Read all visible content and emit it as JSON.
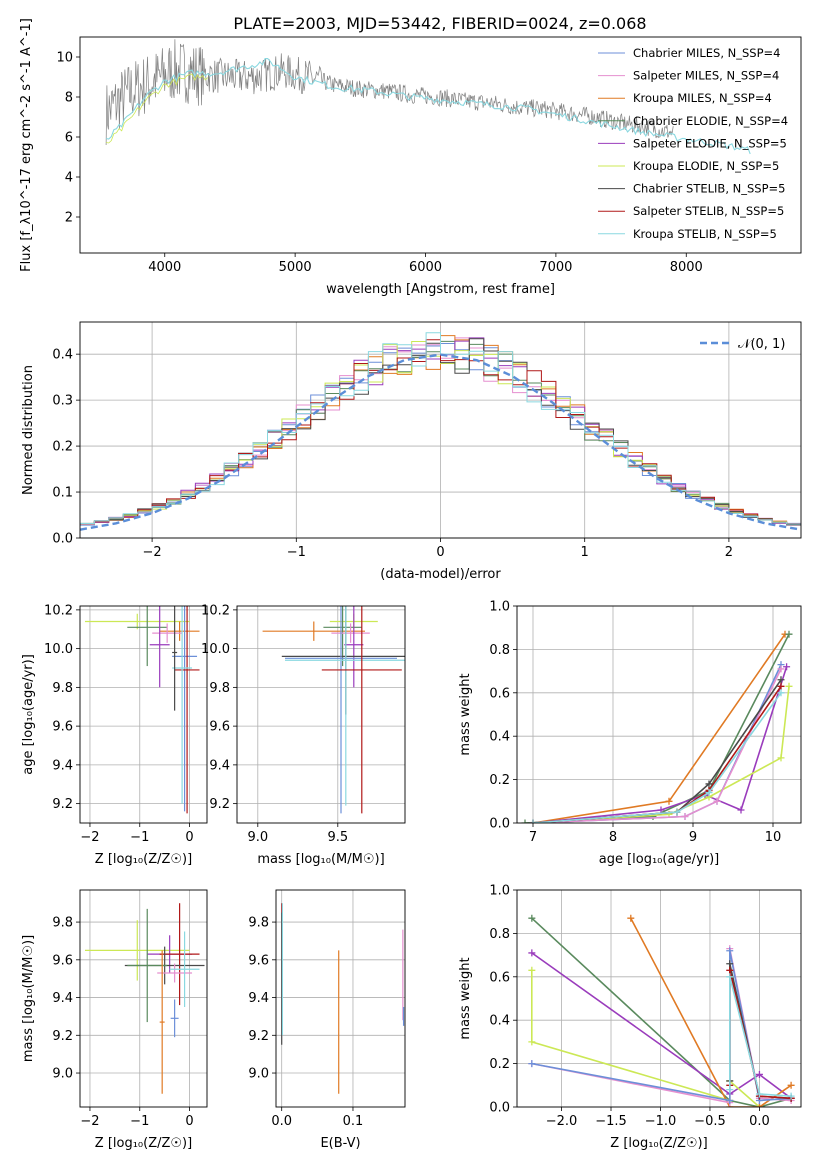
{
  "title": "PLATE=2003, MJD=53442, FIBERID=0024, z=0.068",
  "colors": {
    "chabrier_miles": "#6c8fd8",
    "salpeter_miles": "#e58fcf",
    "kroupa_miles": "#e07a24",
    "chabrier_elodie": "#5a8a5e",
    "salpeter_elodie": "#9a3cbc",
    "kroupa_elodie": "#cce855",
    "chabrier_stelib": "#4a4a4a",
    "salpeter_stelib": "#b01818",
    "kroupa_stelib": "#8ad8e0",
    "data": "#808080",
    "normal": "#5b8ed8"
  },
  "chart_data": [
    {
      "id": "spectrum",
      "type": "line",
      "xlabel": "wavelength [Angstrom, rest frame]",
      "ylabel": "Flux [f_λ10^-17 erg cm^-2 s^-1 A^-1]",
      "xlim": [
        3350,
        8880
      ],
      "ylim": [
        0.2,
        11
      ],
      "xticks": [
        4000,
        5000,
        6000,
        7000,
        8000
      ],
      "yticks": [
        2,
        4,
        6,
        8,
        10
      ],
      "grid": false,
      "legend_position": "top-right",
      "legend": [
        {
          "label": "Chabrier MILES, N_SSP=4",
          "color_key": "chabrier_miles"
        },
        {
          "label": "Salpeter MILES, N_SSP=4",
          "color_key": "salpeter_miles"
        },
        {
          "label": "Kroupa MILES, N_SSP=4",
          "color_key": "kroupa_miles"
        },
        {
          "label": "Chabrier ELODIE, N_SSP=4",
          "color_key": "chabrier_elodie"
        },
        {
          "label": "Salpeter ELODIE, N_SSP=5",
          "color_key": "salpeter_elodie"
        },
        {
          "label": "Kroupa ELODIE, N_SSP=5",
          "color_key": "kroupa_elodie"
        },
        {
          "label": "Chabrier STELIB, N_SSP=5",
          "color_key": "chabrier_stelib"
        },
        {
          "label": "Salpeter STELIB, N_SSP=5",
          "color_key": "salpeter_stelib"
        },
        {
          "label": "Kroupa STELIB, N_SSP=5",
          "color_key": "kroupa_stelib"
        }
      ],
      "continuum": {
        "x": [
          3550,
          3650,
          3750,
          3850,
          3950,
          4050,
          4150,
          4300,
          4500,
          4700,
          4900,
          5100,
          5300,
          5500,
          5700,
          5900,
          6100,
          6300,
          6500,
          6700,
          6900,
          7100,
          7300,
          7500,
          7700,
          7900
        ],
        "y": [
          7.2,
          7.8,
          8.3,
          8.6,
          8.9,
          9.3,
          9.3,
          9.1,
          9.0,
          9.0,
          9.3,
          9.0,
          8.6,
          8.4,
          8.3,
          8.1,
          8.0,
          7.8,
          7.7,
          7.5,
          7.4,
          7.2,
          7.0,
          6.7,
          6.5,
          6.2
        ]
      },
      "model_fit": {
        "x": [
          3550,
          3700,
          3850,
          4000,
          4200,
          4400,
          4600,
          4800,
          5000,
          5300,
          5600,
          5900,
          6200,
          6500,
          6800,
          7100,
          7400,
          7700,
          8000,
          8300,
          8500
        ],
        "y": [
          5.8,
          6.8,
          8.0,
          8.8,
          9.2,
          9.2,
          9.5,
          9.8,
          9.0,
          8.5,
          8.3,
          8.0,
          7.8,
          7.6,
          7.4,
          7.0,
          6.6,
          6.2,
          5.9,
          5.6,
          5.3
        ]
      }
    },
    {
      "id": "residuals",
      "type": "line",
      "xlabel": "(data-model)/error",
      "ylabel": "Normed distribution",
      "xlim": [
        -2.5,
        2.5
      ],
      "ylim": [
        0,
        0.47
      ],
      "xticks": [
        -2,
        -1,
        0,
        1,
        2
      ],
      "yticks": [
        0.0,
        0.1,
        0.2,
        0.3,
        0.4
      ],
      "grid": true,
      "legend_position": "top-right",
      "legend": [
        {
          "label": "𝒩(0, 1)",
          "color_key": "normal"
        }
      ],
      "x": [
        -2.5,
        -2.25,
        -2.0,
        -1.75,
        -1.5,
        -1.25,
        -1.0,
        -0.75,
        -0.5,
        -0.25,
        0.0,
        0.25,
        0.5,
        0.75,
        1.0,
        1.25,
        1.5,
        1.75,
        2.0,
        2.25,
        2.5
      ],
      "y": [
        0.018,
        0.032,
        0.054,
        0.086,
        0.13,
        0.183,
        0.242,
        0.301,
        0.352,
        0.387,
        0.399,
        0.387,
        0.352,
        0.301,
        0.242,
        0.183,
        0.13,
        0.086,
        0.054,
        0.032,
        0.018
      ]
    },
    {
      "id": "age_vs_Z",
      "type": "scatter",
      "xlabel": "Z [log₁₀(Z/Z☉)]",
      "ylabel": "age  [log₁₀(age/yr)]",
      "xlim": [
        -2.2,
        0.35
      ],
      "ylim": [
        9.1,
        10.22
      ],
      "xticks": [
        -2,
        -1,
        0
      ],
      "yticks": [
        9.2,
        9.4,
        9.6,
        9.8,
        10.0,
        10.2
      ],
      "grid": true,
      "points": [
        {
          "series": "kroupa_elodie",
          "x": -1.05,
          "y": 10.14,
          "xerr": 1.05,
          "yerr": 0.04
        },
        {
          "series": "chabrier_elodie",
          "x": -0.85,
          "y": 10.11,
          "xerr": 0.4,
          "yerr": 0.2
        },
        {
          "series": "kroupa_miles",
          "x": -0.2,
          "y": 10.09,
          "xerr": 0.4,
          "yerr": 0.05
        },
        {
          "series": "salpeter_miles",
          "x": -0.45,
          "y": 10.08,
          "xerr": 0.3,
          "yerr": 0.05
        },
        {
          "series": "salpeter_elodie",
          "x": -0.6,
          "y": 10.02,
          "xerr": 0.2,
          "yerr": 0.22
        },
        {
          "series": "chabrier_miles",
          "x": -0.1,
          "y": 9.96,
          "xerr": 0.25,
          "yerr": 0.8
        },
        {
          "series": "salpeter_stelib",
          "x": -0.05,
          "y": 9.89,
          "xerr": 0.25,
          "yerr": 0.74
        },
        {
          "series": "kroupa_stelib",
          "x": -0.15,
          "y": 9.9,
          "xerr": 0.2,
          "yerr": 0.7
        },
        {
          "series": "chabrier_stelib",
          "x": -0.3,
          "y": 9.98,
          "xerr": 0.05,
          "yerr": 0.3
        }
      ]
    },
    {
      "id": "age_vs_mass",
      "type": "scatter",
      "xlabel": "mass [log₁₀(M/M☉)]",
      "ylabel": "",
      "xlim": [
        8.87,
        9.92
      ],
      "ylim": [
        9.1,
        10.22
      ],
      "xticks": [
        9.0,
        9.5
      ],
      "yticks": [
        9.2,
        9.4,
        9.6,
        9.8,
        10.0,
        10.2
      ],
      "grid": true,
      "points": [
        {
          "series": "kroupa_miles",
          "x": 9.35,
          "y": 10.09,
          "xerr": 0.32,
          "yerr": 0.05
        },
        {
          "series": "kroupa_elodie",
          "x": 9.6,
          "y": 10.14,
          "xerr": 0.15,
          "yerr": 0.04
        },
        {
          "series": "chabrier_elodie",
          "x": 9.53,
          "y": 10.11,
          "xerr": 0.12,
          "yerr": 0.2
        },
        {
          "series": "salpeter_miles",
          "x": 9.58,
          "y": 10.08,
          "xerr": 0.12,
          "yerr": 0.05
        },
        {
          "series": "salpeter_elodie",
          "x": 9.6,
          "y": 10.02,
          "xerr": 0.06,
          "yerr": 0.22
        },
        {
          "series": "chabrier_stelib",
          "x": 9.55,
          "y": 9.96,
          "xerr": 0.4,
          "yerr": 0.3
        },
        {
          "series": "chabrier_miles",
          "x": 9.52,
          "y": 9.95,
          "xerr": 0.35,
          "yerr": 0.8
        },
        {
          "series": "kroupa_stelib",
          "x": 9.55,
          "y": 9.94,
          "xerr": 0.38,
          "yerr": 0.75
        },
        {
          "series": "salpeter_stelib",
          "x": 9.65,
          "y": 9.89,
          "xerr": 0.25,
          "yerr": 0.74
        }
      ]
    },
    {
      "id": "weight_vs_age",
      "type": "line",
      "xlabel": "age  [log₁₀(age/yr)]",
      "ylabel": "mass weight",
      "xlim": [
        6.8,
        10.35
      ],
      "ylim": [
        0,
        1.0
      ],
      "xticks": [
        7,
        8,
        9,
        10
      ],
      "yticks": [
        0.0,
        0.2,
        0.4,
        0.6,
        0.8,
        1.0
      ],
      "grid": true,
      "series": [
        {
          "series": "kroupa_miles",
          "x": [
            7.0,
            8.7,
            10.15
          ],
          "y": [
            0.0,
            0.1,
            0.87
          ]
        },
        {
          "series": "chabrier_elodie",
          "x": [
            6.9,
            8.5,
            9.2,
            10.2
          ],
          "y": [
            0.0,
            0.03,
            0.15,
            0.87
          ]
        },
        {
          "series": "salpeter_elodie",
          "x": [
            7.0,
            8.6,
            9.15,
            9.6,
            10.17
          ],
          "y": [
            0.0,
            0.06,
            0.13,
            0.06,
            0.72
          ]
        },
        {
          "series": "kroupa_elodie",
          "x": [
            7.0,
            8.7,
            9.2,
            10.1,
            10.2
          ],
          "y": [
            0.0,
            0.04,
            0.12,
            0.3,
            0.63
          ]
        },
        {
          "series": "chabrier_miles",
          "x": [
            7.0,
            8.9,
            9.3,
            10.1
          ],
          "y": [
            0.0,
            0.03,
            0.1,
            0.73
          ]
        },
        {
          "series": "salpeter_miles",
          "x": [
            7.0,
            8.9,
            9.3,
            10.1
          ],
          "y": [
            0.0,
            0.03,
            0.1,
            0.71
          ]
        },
        {
          "series": "chabrier_stelib",
          "x": [
            7.0,
            8.8,
            9.2,
            10.1
          ],
          "y": [
            0.0,
            0.05,
            0.18,
            0.66
          ]
        },
        {
          "series": "salpeter_stelib",
          "x": [
            7.0,
            8.8,
            9.2,
            10.1
          ],
          "y": [
            0.0,
            0.05,
            0.15,
            0.63
          ]
        },
        {
          "series": "kroupa_stelib",
          "x": [
            7.0,
            8.8,
            9.2,
            10.1
          ],
          "y": [
            0.0,
            0.05,
            0.14,
            0.6
          ]
        }
      ]
    },
    {
      "id": "mass_vs_Z",
      "type": "scatter",
      "xlabel": "Z [log₁₀(Z/Z☉)]",
      "ylabel": "mass [log₁₀(M/M☉)]",
      "xlim": [
        -2.2,
        0.35
      ],
      "ylim": [
        8.82,
        9.97
      ],
      "xticks": [
        -2,
        -1,
        0
      ],
      "yticks": [
        9.0,
        9.2,
        9.4,
        9.6,
        9.8
      ],
      "grid": true,
      "points": [
        {
          "series": "kroupa_elodie",
          "x": -1.05,
          "y": 9.65,
          "xerr": 1.05,
          "yerr": 0.16
        },
        {
          "series": "salpeter_elodie",
          "x": -0.4,
          "y": 9.63,
          "xerr": 0.45,
          "yerr": 0.1
        },
        {
          "series": "salpeter_stelib",
          "x": -0.2,
          "y": 9.63,
          "xerr": 0.4,
          "yerr": 0.27
        },
        {
          "series": "chabrier_stelib",
          "x": -0.5,
          "y": 9.57,
          "xerr": 0.8,
          "yerr": 0.1
        },
        {
          "series": "chabrier_elodie",
          "x": -0.85,
          "y": 9.57,
          "xerr": 0.4,
          "yerr": 0.3
        },
        {
          "series": "salpeter_miles",
          "x": -0.3,
          "y": 9.53,
          "xerr": 0.35,
          "yerr": 0.05
        },
        {
          "series": "kroupa_miles",
          "x": -0.55,
          "y": 9.27,
          "xerr": 0.05,
          "yerr": 0.38
        },
        {
          "series": "chabrier_miles",
          "x": -0.3,
          "y": 9.29,
          "xerr": 0.08,
          "yerr": 0.1
        },
        {
          "series": "kroupa_stelib",
          "x": -0.1,
          "y": 9.55,
          "xerr": 0.3,
          "yerr": 0.2
        }
      ]
    },
    {
      "id": "mass_vs_ebv",
      "type": "scatter",
      "xlabel": "E(B-V)",
      "ylabel": "",
      "xlim": [
        -0.008,
        0.173
      ],
      "ylim": [
        8.82,
        9.97
      ],
      "xticks": [
        0.0,
        0.1
      ],
      "yticks": [
        9.0,
        9.2,
        9.4,
        9.6,
        9.8
      ],
      "grid": true,
      "points": [
        {
          "series": "salpeter_stelib",
          "x": 0.0,
          "y": 9.55,
          "xerr": 0.0,
          "yerr": 0.35
        },
        {
          "series": "kroupa_elodie",
          "x": 0.001,
          "y": 9.6,
          "xerr": 0.0,
          "yerr": 0.2
        },
        {
          "series": "chabrier_stelib",
          "x": 0.0,
          "y": 9.5,
          "xerr": 0.0,
          "yerr": 0.35
        },
        {
          "series": "kroupa_stelib",
          "x": 0.001,
          "y": 9.55,
          "xerr": 0.0,
          "yerr": 0.35
        },
        {
          "series": "kroupa_miles",
          "x": 0.08,
          "y": 9.27,
          "xerr": 0.0,
          "yerr": 0.38
        },
        {
          "series": "salpeter_miles",
          "x": 0.17,
          "y": 9.52,
          "xerr": 0.0,
          "yerr": 0.24
        },
        {
          "series": "chabrier_miles",
          "x": 0.171,
          "y": 9.3,
          "xerr": 0.0,
          "yerr": 0.05
        }
      ]
    },
    {
      "id": "weight_vs_Z",
      "type": "line",
      "xlabel": "Z [log₁₀(Z/Z☉)]",
      "ylabel": "mass weight",
      "xlim": [
        -2.45,
        0.42
      ],
      "ylim": [
        0,
        1.0
      ],
      "xticks": [
        -2.0,
        -1.5,
        -1.0,
        -0.5,
        0.0
      ],
      "yticks": [
        0.0,
        0.2,
        0.4,
        0.6,
        0.8,
        1.0
      ],
      "grid": true,
      "series": [
        {
          "series": "chabrier_elodie",
          "x": [
            -2.3,
            -0.3,
            0.0,
            0.32
          ],
          "y": [
            0.87,
            0.03,
            0.0,
            0.04
          ]
        },
        {
          "series": "salpeter_elodie",
          "x": [
            -2.3,
            -0.3,
            0.0,
            0.32
          ],
          "y": [
            0.71,
            0.06,
            0.15,
            0.04
          ]
        },
        {
          "series": "kroupa_elodie",
          "x": [
            -2.3,
            -2.3,
            -0.3,
            -0.3,
            0.0
          ],
          "y": [
            0.63,
            0.3,
            0.03,
            0.12,
            0.0
          ]
        },
        {
          "series": "kroupa_miles",
          "x": [
            -1.3,
            -0.3,
            0.0,
            0.32
          ],
          "y": [
            0.87,
            0.0,
            0.0,
            0.1
          ]
        },
        {
          "series": "salpeter_miles",
          "x": [
            -2.3,
            -0.3,
            -0.3,
            0.0,
            0.32
          ],
          "y": [
            0.2,
            0.02,
            0.73,
            0.04,
            0.03
          ]
        },
        {
          "series": "chabrier_miles",
          "x": [
            -2.3,
            -0.3,
            -0.3,
            0.0,
            0.32
          ],
          "y": [
            0.2,
            0.03,
            0.72,
            0.03,
            0.04
          ]
        },
        {
          "series": "chabrier_stelib",
          "x": [
            -0.3,
            -0.3,
            0.0,
            0.32
          ],
          "y": [
            0.12,
            0.66,
            0.05,
            0.04
          ]
        },
        {
          "series": "salpeter_stelib",
          "x": [
            -0.3,
            -0.3,
            0.0,
            0.32
          ],
          "y": [
            0.1,
            0.63,
            0.05,
            0.04
          ]
        },
        {
          "series": "kroupa_stelib",
          "x": [
            -0.3,
            -0.3,
            0.0,
            0.32
          ],
          "y": [
            0.08,
            0.6,
            0.06,
            0.05
          ]
        }
      ]
    }
  ]
}
